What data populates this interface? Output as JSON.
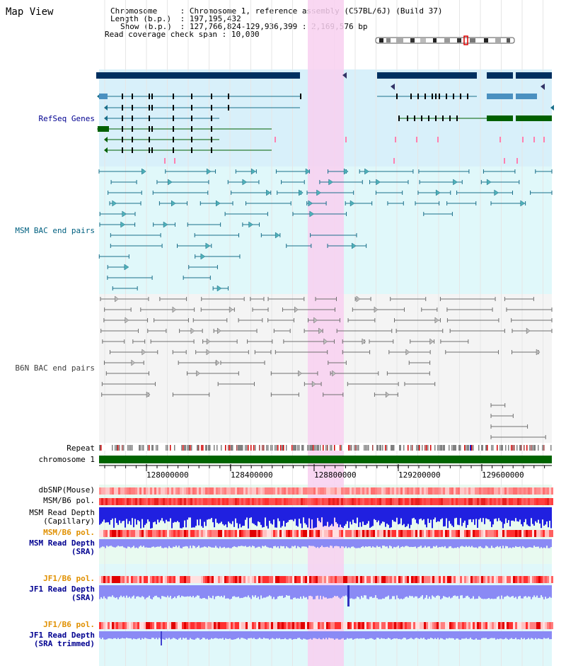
{
  "title": "Map View",
  "info": {
    "chromosome_key": "Chromosome",
    "chromosome_val": "Chromosome 1, reference assembly (C57BL/6J) (Build 37)",
    "length_key": "Length (b.p.)",
    "length_val": "197,195,432",
    "show_key": "Show (b.p.)",
    "show_val": "127,766,824-129,936,399 : 2,169,576 bp",
    "coverage_key": "Read coverage check span",
    "coverage_val": "10,000"
  },
  "tracks": {
    "refseq": "RefSeq Genes",
    "msm_bac": "MSM BAC end pairs",
    "b6n_bac": "B6N BAC end pairs",
    "repeat": "Repeat",
    "chromosome": "chromosome 1",
    "dbsnp": "dbSNP(Mouse)",
    "msm_b6_pol_1": "MSM/B6 pol.",
    "msm_read_depth_cap_1": "MSM Read Depth",
    "msm_read_depth_cap_2": "(Capillary)",
    "msm_b6_pol_2": "MSM/B6 pol.",
    "msm_read_depth_sra_1": "MSM Read Depth",
    "msm_read_depth_sra_2": "(SRA)",
    "jf1_b6_pol_1": "JF1/B6 pol.",
    "jf1_read_depth_sra_1": "JF1 Read Depth",
    "jf1_read_depth_sra_2": "(SRA)",
    "jf1_b6_pol_2": "JF1/B6 pol.",
    "jf1_read_depth_trim_1": "JF1 Read Depth",
    "jf1_read_depth_trim_2": "(SRA trimmed)"
  },
  "axis": {
    "ticks": [
      "128000000",
      "128400000",
      "128800000",
      "129200000",
      "129600000"
    ]
  },
  "colors": {
    "highlight": "#f8d0f0",
    "refseq_bg": "#d8f0fa",
    "msm_bg": "#e0f8fa",
    "b6n_bg": "#f4f4f4",
    "chrom_bar": "#006400",
    "refseq_dark": "#003060",
    "msm_line": "#1a6f8a",
    "b6n_line": "#707070",
    "snp_red": "#ff5050",
    "depth_blue": "#2020e0",
    "depth_lilac": "#8a8af5"
  }
}
